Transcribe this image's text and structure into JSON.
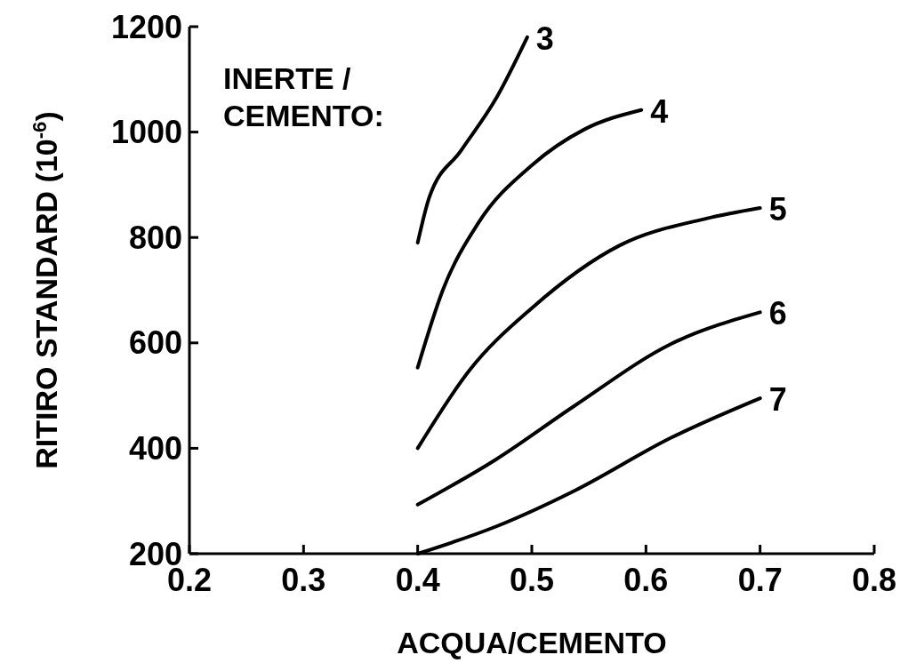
{
  "chart_data": {
    "type": "line",
    "xlabel": "ACQUA/CEMENTO",
    "ylabel": "RITIRO STANDARD (10$^{-6}$)",
    "legend_title": "INERTE /\nCEMENTO:",
    "xlim": [
      0.2,
      0.8
    ],
    "xticks": [
      0.2,
      0.3,
      0.4,
      0.5,
      0.6,
      0.7,
      0.8
    ],
    "ylim": [
      200,
      1200
    ],
    "yticks": [
      200,
      400,
      600,
      800,
      1000,
      1200
    ],
    "grid": false,
    "marker": "none",
    "line_style": "solid",
    "series": [
      {
        "name": "3",
        "color": "#000000",
        "x": [
          0.4,
          0.41,
          0.438,
          0.469,
          0.496
        ],
        "values": [
          790,
          875,
          965,
          1065,
          1180
        ]
      },
      {
        "name": "4",
        "color": "#000000",
        "x": [
          0.4,
          0.422,
          0.453,
          0.5,
          0.546,
          0.596
        ],
        "values": [
          553,
          700,
          827,
          937,
          1005,
          1042
        ]
      },
      {
        "name": "5",
        "color": "#000000",
        "x": [
          0.4,
          0.445,
          0.5,
          0.577,
          0.653,
          0.7
        ],
        "values": [
          400,
          547,
          666,
          785,
          836,
          856
        ]
      },
      {
        "name": "6",
        "color": "#000000",
        "x": [
          0.4,
          0.468,
          0.537,
          0.622,
          0.7
        ],
        "values": [
          293,
          378,
          480,
          598,
          658
        ]
      },
      {
        "name": "7",
        "color": "#000000",
        "x": [
          0.4,
          0.468,
          0.537,
          0.622,
          0.7
        ],
        "values": [
          200,
          251,
          319,
          420,
          495
        ]
      }
    ]
  }
}
